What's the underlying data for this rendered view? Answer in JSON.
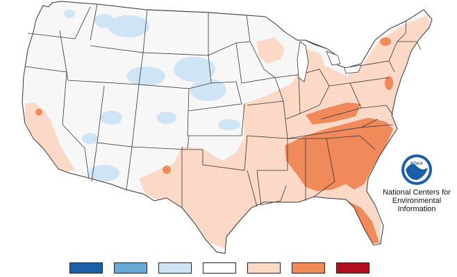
{
  "map": {
    "colors": {
      "background": "#ffffff",
      "land_normal": "#f7f7f7",
      "state_border": "#333333",
      "cool_light": "#cfe4f5",
      "warm_light": "#fcd9c6",
      "warm_mid": "#f08a5a",
      "water": "#ffffff"
    }
  },
  "agency": {
    "name_lines": "National Centers for\nEnvironmental\nInformation",
    "logo_text": "NOAA",
    "logo_colors": {
      "outer": "#1a5ea8",
      "inner": "#ffffff",
      "bird": "#1a5ea8"
    }
  },
  "legend": {
    "swatches": [
      {
        "color": "#1f5fa8",
        "name": "much-below"
      },
      {
        "color": "#6aa8d6",
        "name": "below"
      },
      {
        "color": "#cfe4f5",
        "name": "slightly-below"
      },
      {
        "color": "#ffffff",
        "name": "near-normal"
      },
      {
        "color": "#fcd9c6",
        "name": "slightly-above"
      },
      {
        "color": "#f08a5a",
        "name": "above"
      },
      {
        "color": "#b0101d",
        "name": "much-above"
      }
    ]
  }
}
